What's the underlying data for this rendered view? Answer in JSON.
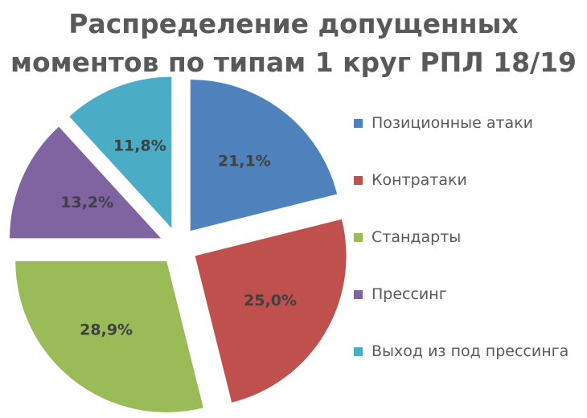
{
  "chart_data": {
    "type": "pie",
    "title_lines": [
      "Распределение допущенных",
      "моментов по типам 1 круг РПЛ 18/19"
    ],
    "categories": [
      "Позиционные атаки",
      "Контратаки",
      "Стандарты",
      "Прессинг",
      "Выход из под прессинга"
    ],
    "values": [
      21.1,
      25.0,
      28.9,
      13.2,
      11.8
    ],
    "data_labels": [
      "21,1%",
      "25,0%",
      "28,9%",
      "13,2%",
      "11,8%"
    ],
    "colors": [
      "#4F81BD",
      "#C0504D",
      "#9BBB59",
      "#8064A2",
      "#4BACC6"
    ],
    "exploded": true,
    "legend_position": "right"
  }
}
